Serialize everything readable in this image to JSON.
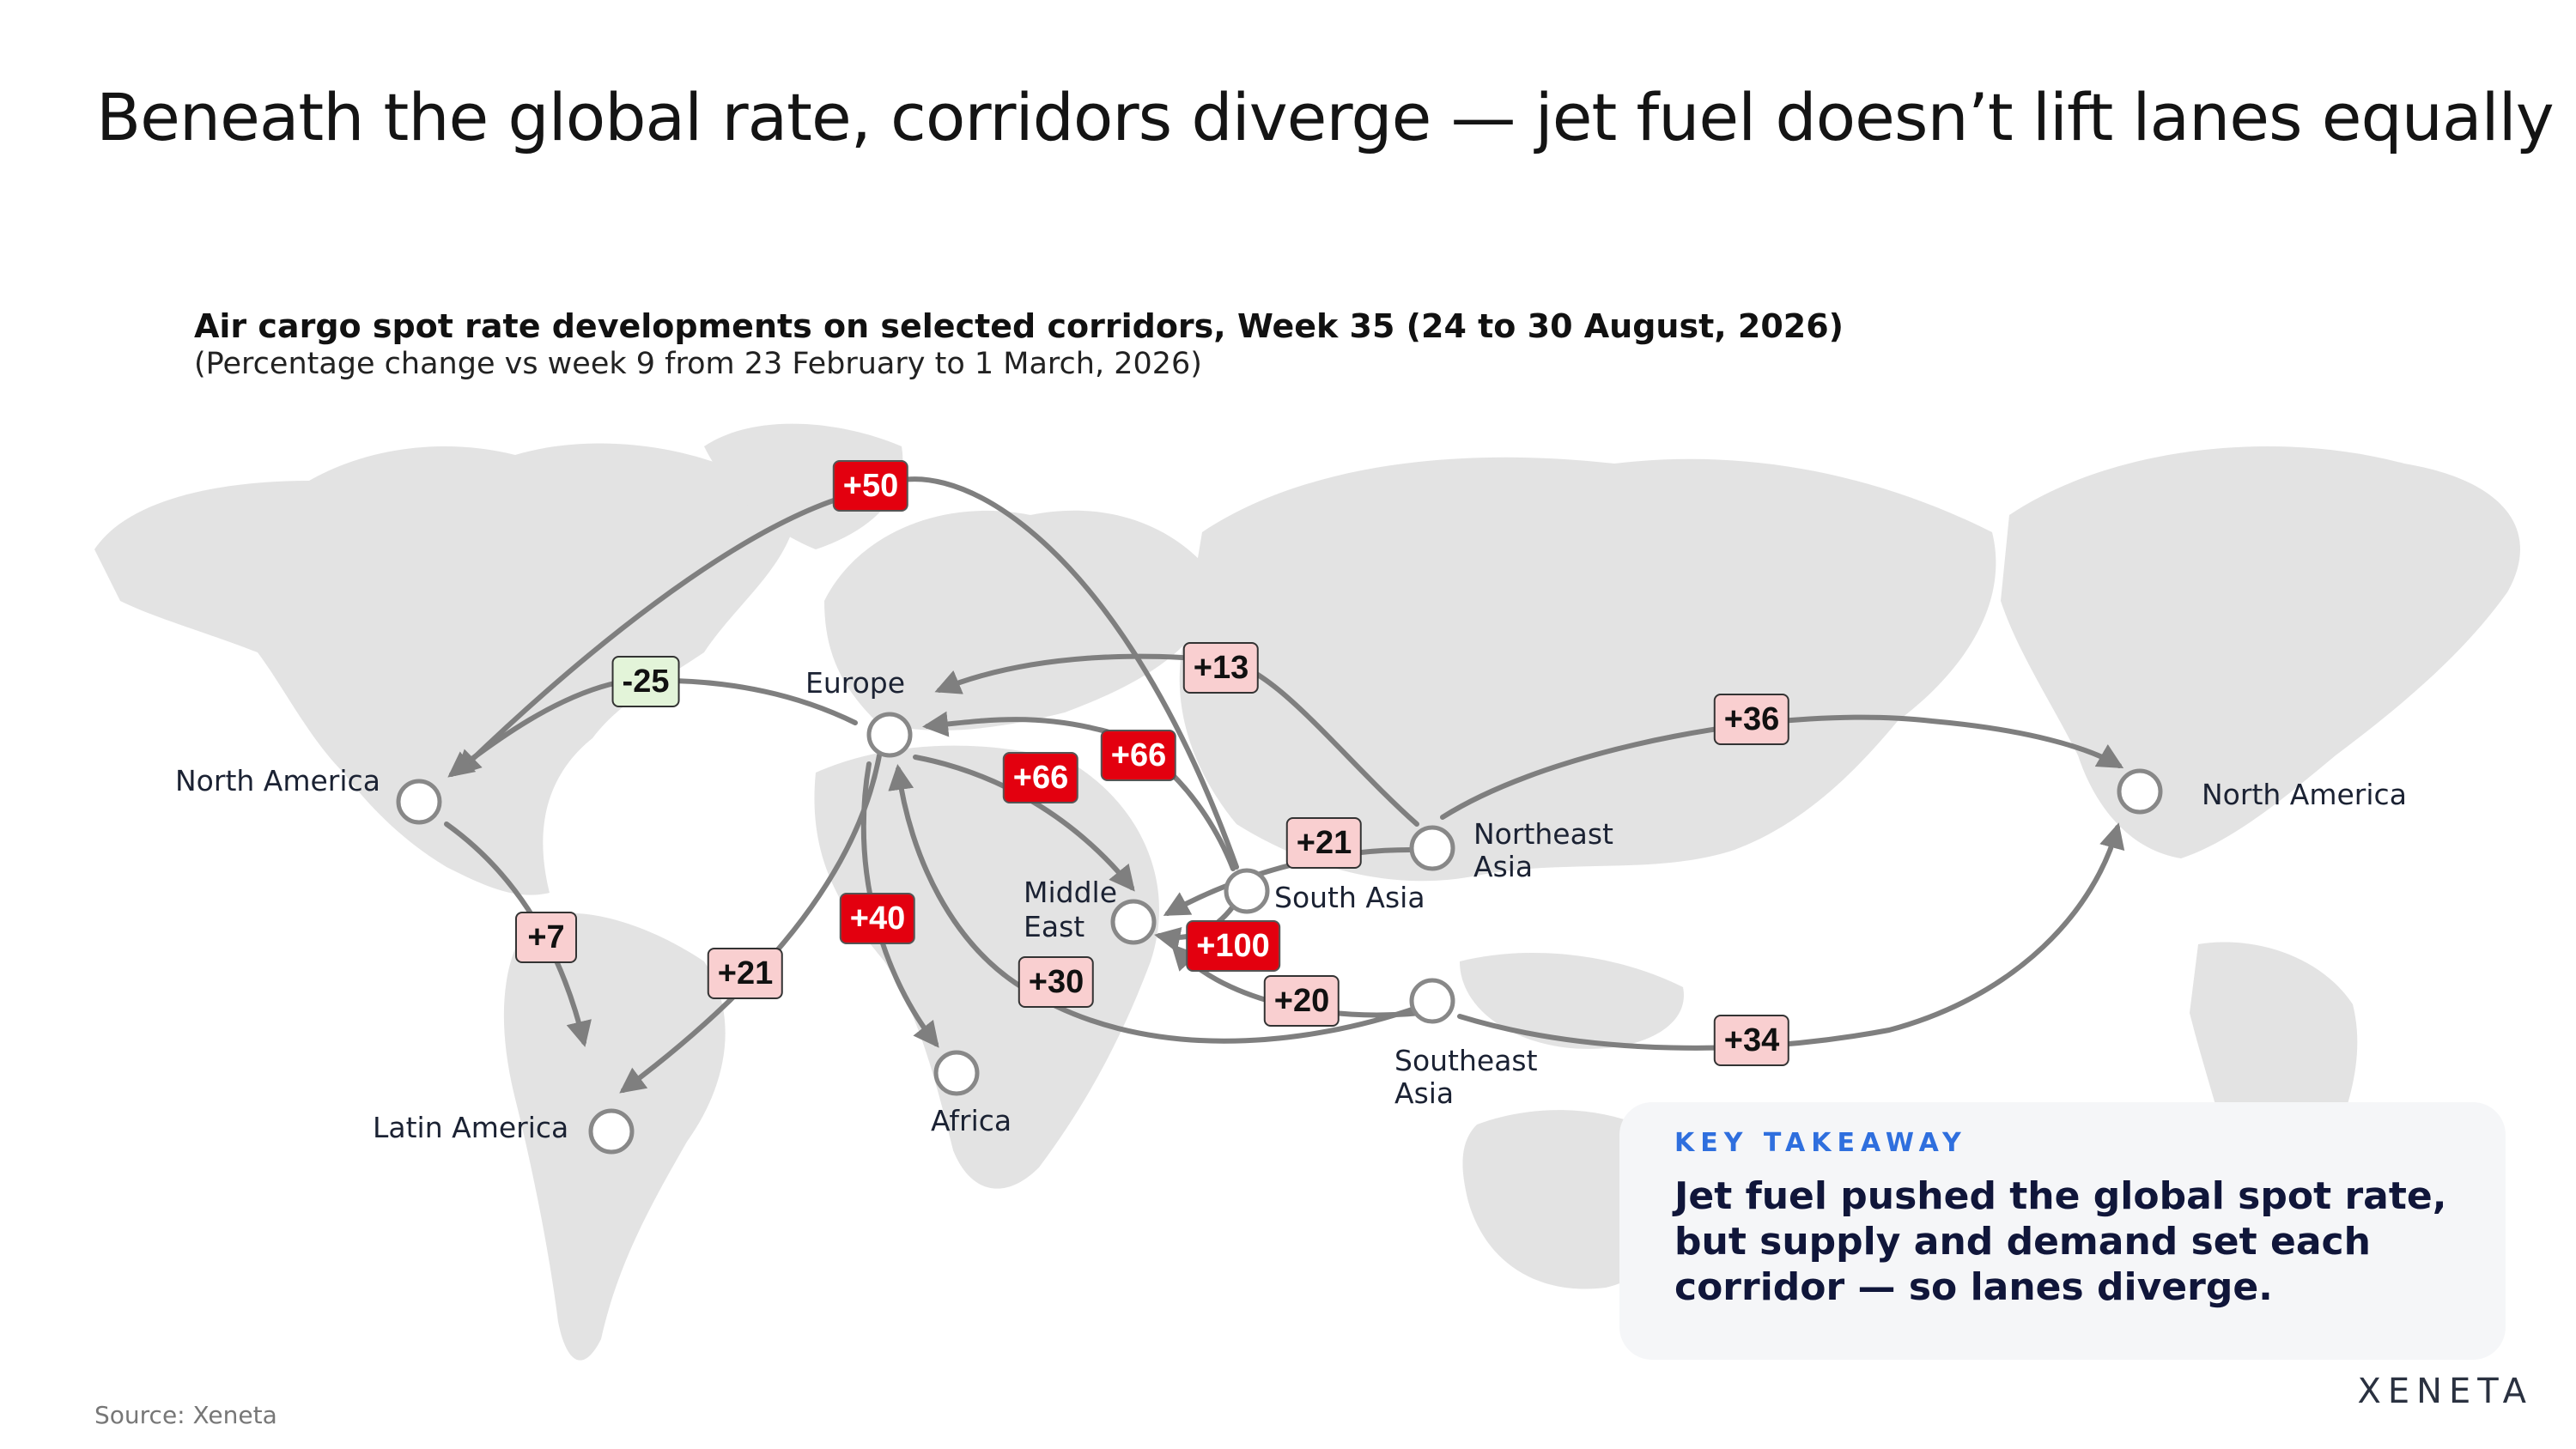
{
  "title": "Beneath the global rate, corridors diverge — jet fuel doesn’t lift lanes equally",
  "chart_title": "Air cargo spot rate developments on selected corridors, Week 35 (24 to 30 August, 2026)",
  "chart_subtitle": "(Percentage change vs week 9 from 23 February to 1 March, 2026)",
  "nodes": {
    "north_america_w": "North America",
    "europe": "Europe",
    "latin_america": "Latin America",
    "africa": "Africa",
    "middle_east_1": "Middle",
    "middle_east_2": "East",
    "south_asia": "South Asia",
    "northeast_asia_1": "Northeast",
    "northeast_asia_2": "Asia",
    "southeast_asia_1": "Southeast",
    "southeast_asia_2": "Asia",
    "north_america_e": "North America"
  },
  "corridors": [
    {
      "from": "South Asia",
      "to": "North America",
      "label": "+50"
    },
    {
      "from": "Europe",
      "to": "North America",
      "label": "-25"
    },
    {
      "from": "Northeast Asia",
      "to": "Europe",
      "label": "+13"
    },
    {
      "from": "South Asia",
      "to": "Europe",
      "label": "+66"
    },
    {
      "from": "Europe",
      "to": "Middle East",
      "label": "+66"
    },
    {
      "from": "North America",
      "to": "Latin America",
      "label": "+7"
    },
    {
      "from": "Europe",
      "to": "Latin America",
      "label": "+21"
    },
    {
      "from": "Europe",
      "to": "Africa",
      "label": "+40"
    },
    {
      "from": "Southeast Asia",
      "to": "Europe",
      "label": "+30"
    },
    {
      "from": "Northeast Asia",
      "to": "Middle East",
      "label": "+21"
    },
    {
      "from": "South Asia",
      "to": "Middle East",
      "label": "+100"
    },
    {
      "from": "Southeast Asia",
      "to": "Middle East",
      "label": "+20"
    },
    {
      "from": "Northeast Asia",
      "to": "North America",
      "label": "+36"
    },
    {
      "from": "Southeast Asia",
      "to": "North America",
      "label": "+34"
    }
  ],
  "takeaway": {
    "kicker": "KEY TAKEAWAY",
    "text": "Jet fuel pushed the global spot rate, but supply and demand set each corridor — so lanes diverge."
  },
  "source": "Source: Xeneta",
  "logo": "XENETA",
  "colors": {
    "strong": "#e3000f",
    "mid": "#f9cfd0",
    "negative": "#e3f4d9",
    "arrow": "#7f7f7f",
    "accent": "#2f6fde"
  }
}
